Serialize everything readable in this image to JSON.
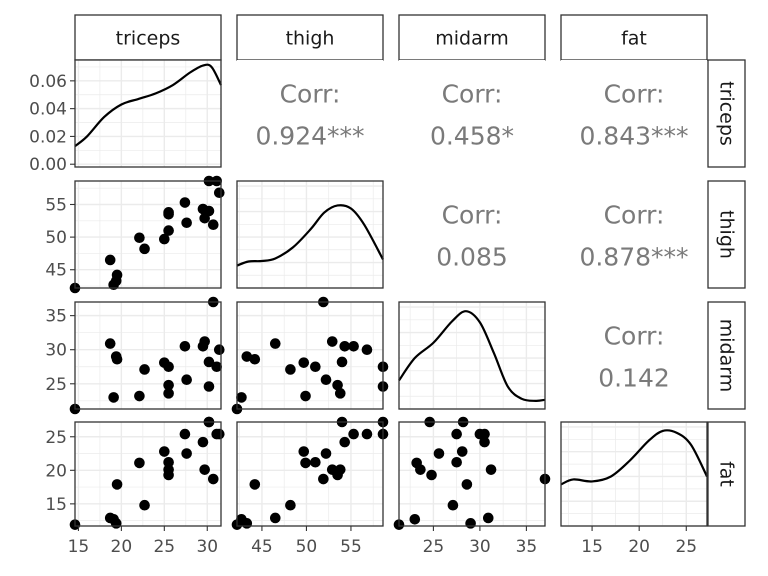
{
  "chart_data": {
    "type": "scatter",
    "subtype": "pairs-matrix",
    "variables": [
      "triceps",
      "thigh",
      "midarm",
      "fat"
    ],
    "ranges": {
      "triceps": [
        14.6,
        31.6
      ],
      "thigh": [
        42.2,
        58.6
      ],
      "midarm": [
        21.3,
        37.0
      ],
      "fat": [
        11.7,
        27.2
      ]
    },
    "ticks": {
      "triceps": [
        15,
        20,
        25,
        30
      ],
      "thigh": [
        45,
        50,
        55
      ],
      "midarm": [
        25,
        30,
        35
      ],
      "fat": [
        15,
        20,
        25
      ]
    },
    "density_ticks": {
      "values": [
        0.0,
        0.02,
        0.04,
        0.06
      ],
      "labels": [
        "0.00",
        "0.02",
        "0.04",
        "0.06"
      ],
      "range": [
        -0.002,
        0.075
      ]
    },
    "density_curves": {
      "triceps": [
        [
          14.6,
          0.013
        ],
        [
          16,
          0.02
        ],
        [
          18,
          0.034
        ],
        [
          20,
          0.043
        ],
        [
          22,
          0.047
        ],
        [
          24,
          0.051
        ],
        [
          26,
          0.057
        ],
        [
          28,
          0.066
        ],
        [
          29.5,
          0.071
        ],
        [
          30.5,
          0.07
        ],
        [
          31.6,
          0.057
        ]
      ],
      "thigh": [
        [
          42.2,
          0.22
        ],
        [
          43.5,
          0.26
        ],
        [
          45,
          0.265
        ],
        [
          46.5,
          0.29
        ],
        [
          48.5,
          0.4
        ],
        [
          50.5,
          0.58
        ],
        [
          52,
          0.74
        ],
        [
          53.5,
          0.81
        ],
        [
          55,
          0.78
        ],
        [
          56.5,
          0.62
        ],
        [
          58.6,
          0.28
        ]
      ],
      "midarm": [
        [
          21.3,
          0.28
        ],
        [
          23,
          0.5
        ],
        [
          25,
          0.65
        ],
        [
          27,
          0.86
        ],
        [
          28.5,
          0.96
        ],
        [
          30,
          0.85
        ],
        [
          31.5,
          0.55
        ],
        [
          33,
          0.22
        ],
        [
          34.5,
          0.1
        ],
        [
          36,
          0.08
        ],
        [
          37,
          0.09
        ]
      ],
      "fat": [
        [
          11.7,
          0.42
        ],
        [
          13,
          0.47
        ],
        [
          15,
          0.45
        ],
        [
          17,
          0.5
        ],
        [
          19,
          0.66
        ],
        [
          21,
          0.86
        ],
        [
          22.5,
          0.96
        ],
        [
          24,
          0.94
        ],
        [
          25.5,
          0.82
        ],
        [
          27.2,
          0.5
        ]
      ]
    },
    "correlations": [
      {
        "row": "triceps",
        "col": "thigh",
        "label": "Corr:",
        "value": "0.924***"
      },
      {
        "row": "triceps",
        "col": "midarm",
        "label": "Corr:",
        "value": "0.458*"
      },
      {
        "row": "triceps",
        "col": "fat",
        "label": "Corr:",
        "value": "0.843***"
      },
      {
        "row": "thigh",
        "col": "midarm",
        "label": "Corr:",
        "value": "0.085"
      },
      {
        "row": "thigh",
        "col": "fat",
        "label": "Corr:",
        "value": "0.878***"
      },
      {
        "row": "midarm",
        "col": "fat",
        "label": "Corr:",
        "value": "0.142"
      }
    ],
    "observations": [
      {
        "triceps": 14.6,
        "thigh": 42.2,
        "midarm": 21.3,
        "fat": 11.9
      },
      {
        "triceps": 19.1,
        "thigh": 42.7,
        "midarm": 23.0,
        "fat": 12.7
      },
      {
        "triceps": 19.4,
        "thigh": 43.3,
        "midarm": 29.0,
        "fat": 12.1
      },
      {
        "triceps": 19.5,
        "thigh": 44.2,
        "midarm": 28.6,
        "fat": 17.9
      },
      {
        "triceps": 18.7,
        "thigh": 46.5,
        "midarm": 30.9,
        "fat": 12.9
      },
      {
        "triceps": 22.1,
        "thigh": 49.9,
        "midarm": 23.2,
        "fat": 21.1
      },
      {
        "triceps": 22.7,
        "thigh": 48.2,
        "midarm": 27.1,
        "fat": 14.8
      },
      {
        "triceps": 25.0,
        "thigh": 49.7,
        "midarm": 28.1,
        "fat": 22.8
      },
      {
        "triceps": 25.5,
        "thigh": 51.0,
        "midarm": 27.5,
        "fat": 21.2
      },
      {
        "triceps": 25.5,
        "thigh": 53.5,
        "midarm": 24.8,
        "fat": 19.3
      },
      {
        "triceps": 25.5,
        "thigh": 53.8,
        "midarm": 23.6,
        "fat": 20.1
      },
      {
        "triceps": 27.4,
        "thigh": 55.3,
        "midarm": 30.5,
        "fat": 25.4
      },
      {
        "triceps": 27.6,
        "thigh": 52.2,
        "midarm": 25.6,
        "fat": 22.5
      },
      {
        "triceps": 29.5,
        "thigh": 54.3,
        "midarm": 30.5,
        "fat": 24.2
      },
      {
        "triceps": 29.7,
        "thigh": 52.9,
        "midarm": 31.2,
        "fat": 20.1
      },
      {
        "triceps": 30.2,
        "thigh": 58.6,
        "midarm": 24.6,
        "fat": 27.2
      },
      {
        "triceps": 30.2,
        "thigh": 54.0,
        "midarm": 28.2,
        "fat": 27.2
      },
      {
        "triceps": 30.7,
        "thigh": 51.9,
        "midarm": 37.0,
        "fat": 18.7
      },
      {
        "triceps": 31.1,
        "thigh": 58.6,
        "midarm": 27.5,
        "fat": 25.4
      },
      {
        "triceps": 31.4,
        "thigh": 56.8,
        "midarm": 30.0,
        "fat": 25.4
      }
    ]
  }
}
